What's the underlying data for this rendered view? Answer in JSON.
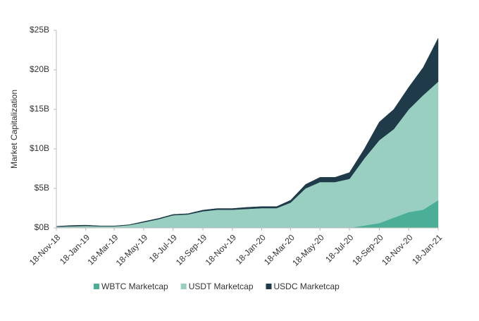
{
  "chart_data": {
    "type": "stacked-area",
    "y_label": "Market Capitalization",
    "x": [
      "18-Nov-18",
      "18-Dec-18",
      "18-Jan-19",
      "18-Feb-19",
      "18-Mar-19",
      "18-Apr-19",
      "18-May-19",
      "18-Jun-19",
      "18-Jul-19",
      "18-Aug-19",
      "18-Sep-19",
      "18-Oct-19",
      "18-Nov-19",
      "18-Dec-19",
      "18-Jan-20",
      "18-Feb-20",
      "18-Mar-20",
      "18-Apr-20",
      "18-May-20",
      "18-Jun-20",
      "18-Jul-20",
      "18-Aug-20",
      "18-Sep-20",
      "18-Oct-20",
      "18-Nov-20",
      "18-Dec-20",
      "18-Jan-21"
    ],
    "series": [
      {
        "name": "WBTC Marketcap",
        "color": "#4aaf96",
        "values": [
          0,
          0,
          0,
          0,
          0,
          0,
          0,
          0,
          0,
          0,
          0,
          0,
          0,
          0,
          0,
          0,
          0,
          0,
          0,
          0,
          0,
          0.3,
          0.6,
          1.3,
          2.0,
          2.3,
          3.5
        ]
      },
      {
        "name": "USDT Marketcap",
        "color": "#98cfc0",
        "values": [
          0.15,
          0.2,
          0.25,
          0.2,
          0.2,
          0.35,
          0.7,
          1.1,
          1.6,
          1.7,
          2.1,
          2.3,
          2.3,
          2.4,
          2.5,
          2.5,
          3.2,
          5.0,
          5.8,
          5.8,
          6.2,
          8.5,
          10.5,
          11.2,
          13.0,
          14.5,
          15.0
        ]
      },
      {
        "name": "USDC Marketcap",
        "color": "#1f3a48",
        "values": [
          0.05,
          0.1,
          0.1,
          0.05,
          0.05,
          0.05,
          0.1,
          0.1,
          0.1,
          0.1,
          0.15,
          0.15,
          0.15,
          0.2,
          0.2,
          0.2,
          0.3,
          0.5,
          0.6,
          0.6,
          0.8,
          1.2,
          2.3,
          2.5,
          2.8,
          3.5,
          5.5
        ]
      }
    ],
    "xlim": [
      "18-Nov-18",
      "18-Jan-21"
    ],
    "xticks": [
      "18-Nov-18",
      "18-Jan-19",
      "18-Mar-19",
      "18-May-19",
      "18-Jul-19",
      "18-Sep-19",
      "18-Nov-19",
      "18-Jan-20",
      "18-Mar-20",
      "18-May-20",
      "18-Jul-20",
      "18-Sep-20",
      "18-Nov-20",
      "18-Jan-21"
    ],
    "ylim": [
      0,
      25
    ],
    "yticks": [
      {
        "value": 0,
        "label": "$0B"
      },
      {
        "value": 5,
        "label": "$5B"
      },
      {
        "value": 10,
        "label": "$10B"
      },
      {
        "value": 15,
        "label": "$15B"
      },
      {
        "value": 20,
        "label": "$20B"
      },
      {
        "value": 25,
        "label": "$25B"
      }
    ],
    "legend": "bottom"
  }
}
